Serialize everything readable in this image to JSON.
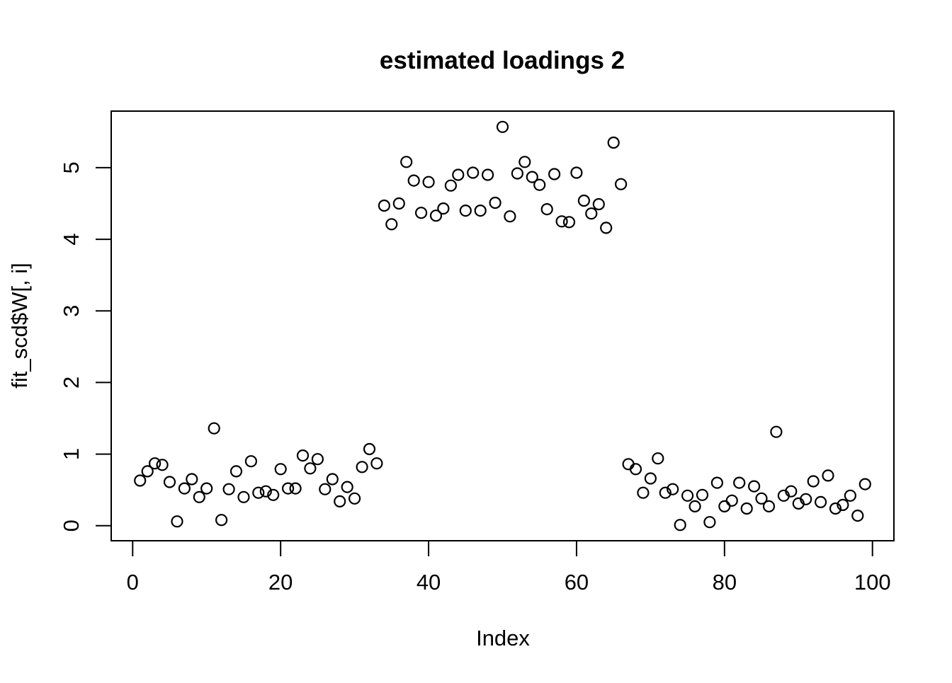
{
  "figure": {
    "title": "estimated loadings 2",
    "xlabel": "Index",
    "ylabel": "fit_scd$W[, i]"
  },
  "colors": {
    "background": "#ffffff",
    "foreground": "#000000"
  },
  "chart_data": {
    "type": "scatter",
    "title": "estimated loadings 2",
    "xlabel": "Index",
    "ylabel": "fit_scd$W[, i]",
    "point_style": "open-circle",
    "grid": false,
    "legend": null,
    "x_ticks": [
      0,
      20,
      40,
      60,
      80,
      100
    ],
    "y_ticks": [
      0,
      1,
      2,
      3,
      4,
      5
    ],
    "xlim": [
      -2.9,
      102.9
    ],
    "ylim": [
      -0.21,
      5.79
    ],
    "x": [
      1,
      2,
      3,
      4,
      5,
      6,
      7,
      8,
      9,
      10,
      11,
      12,
      13,
      14,
      15,
      16,
      17,
      18,
      19,
      20,
      21,
      22,
      23,
      24,
      25,
      26,
      27,
      28,
      29,
      30,
      31,
      32,
      33,
      34,
      35,
      36,
      37,
      38,
      39,
      40,
      41,
      42,
      43,
      44,
      45,
      46,
      47,
      48,
      49,
      50,
      51,
      52,
      53,
      54,
      55,
      56,
      57,
      58,
      59,
      60,
      61,
      62,
      63,
      64,
      65,
      66,
      67,
      68,
      69,
      70,
      71,
      72,
      73,
      74,
      75,
      76,
      77,
      78,
      79,
      80,
      81,
      82,
      83,
      84,
      85,
      86,
      87,
      88,
      89,
      90,
      91,
      92,
      93,
      94,
      95,
      96,
      97,
      98,
      99
    ],
    "y": [
      0.63,
      0.76,
      0.87,
      0.85,
      0.61,
      0.06,
      0.52,
      0.65,
      0.4,
      0.52,
      1.36,
      0.08,
      0.51,
      0.76,
      0.4,
      0.9,
      0.46,
      0.48,
      0.43,
      0.79,
      0.52,
      0.52,
      0.98,
      0.8,
      0.93,
      0.51,
      0.65,
      0.34,
      0.54,
      0.38,
      0.82,
      1.07,
      0.87,
      4.47,
      4.21,
      4.5,
      5.08,
      4.82,
      4.37,
      4.8,
      4.33,
      4.43,
      4.75,
      4.9,
      4.4,
      4.93,
      4.4,
      4.9,
      4.51,
      5.57,
      4.32,
      4.92,
      5.08,
      4.87,
      4.76,
      4.42,
      4.91,
      4.25,
      4.24,
      4.93,
      4.54,
      4.36,
      4.49,
      4.16,
      5.35,
      4.77,
      0.86,
      0.79,
      0.46,
      0.66,
      0.94,
      0.46,
      0.51,
      0.01,
      0.42,
      0.27,
      0.43,
      0.05,
      0.6,
      0.27,
      0.35,
      0.6,
      0.24,
      0.55,
      0.38,
      0.27,
      1.31,
      0.42,
      0.48,
      0.31,
      0.37,
      0.62,
      0.33,
      0.7,
      0.24,
      0.29,
      0.42,
      0.14,
      0.58
    ]
  }
}
